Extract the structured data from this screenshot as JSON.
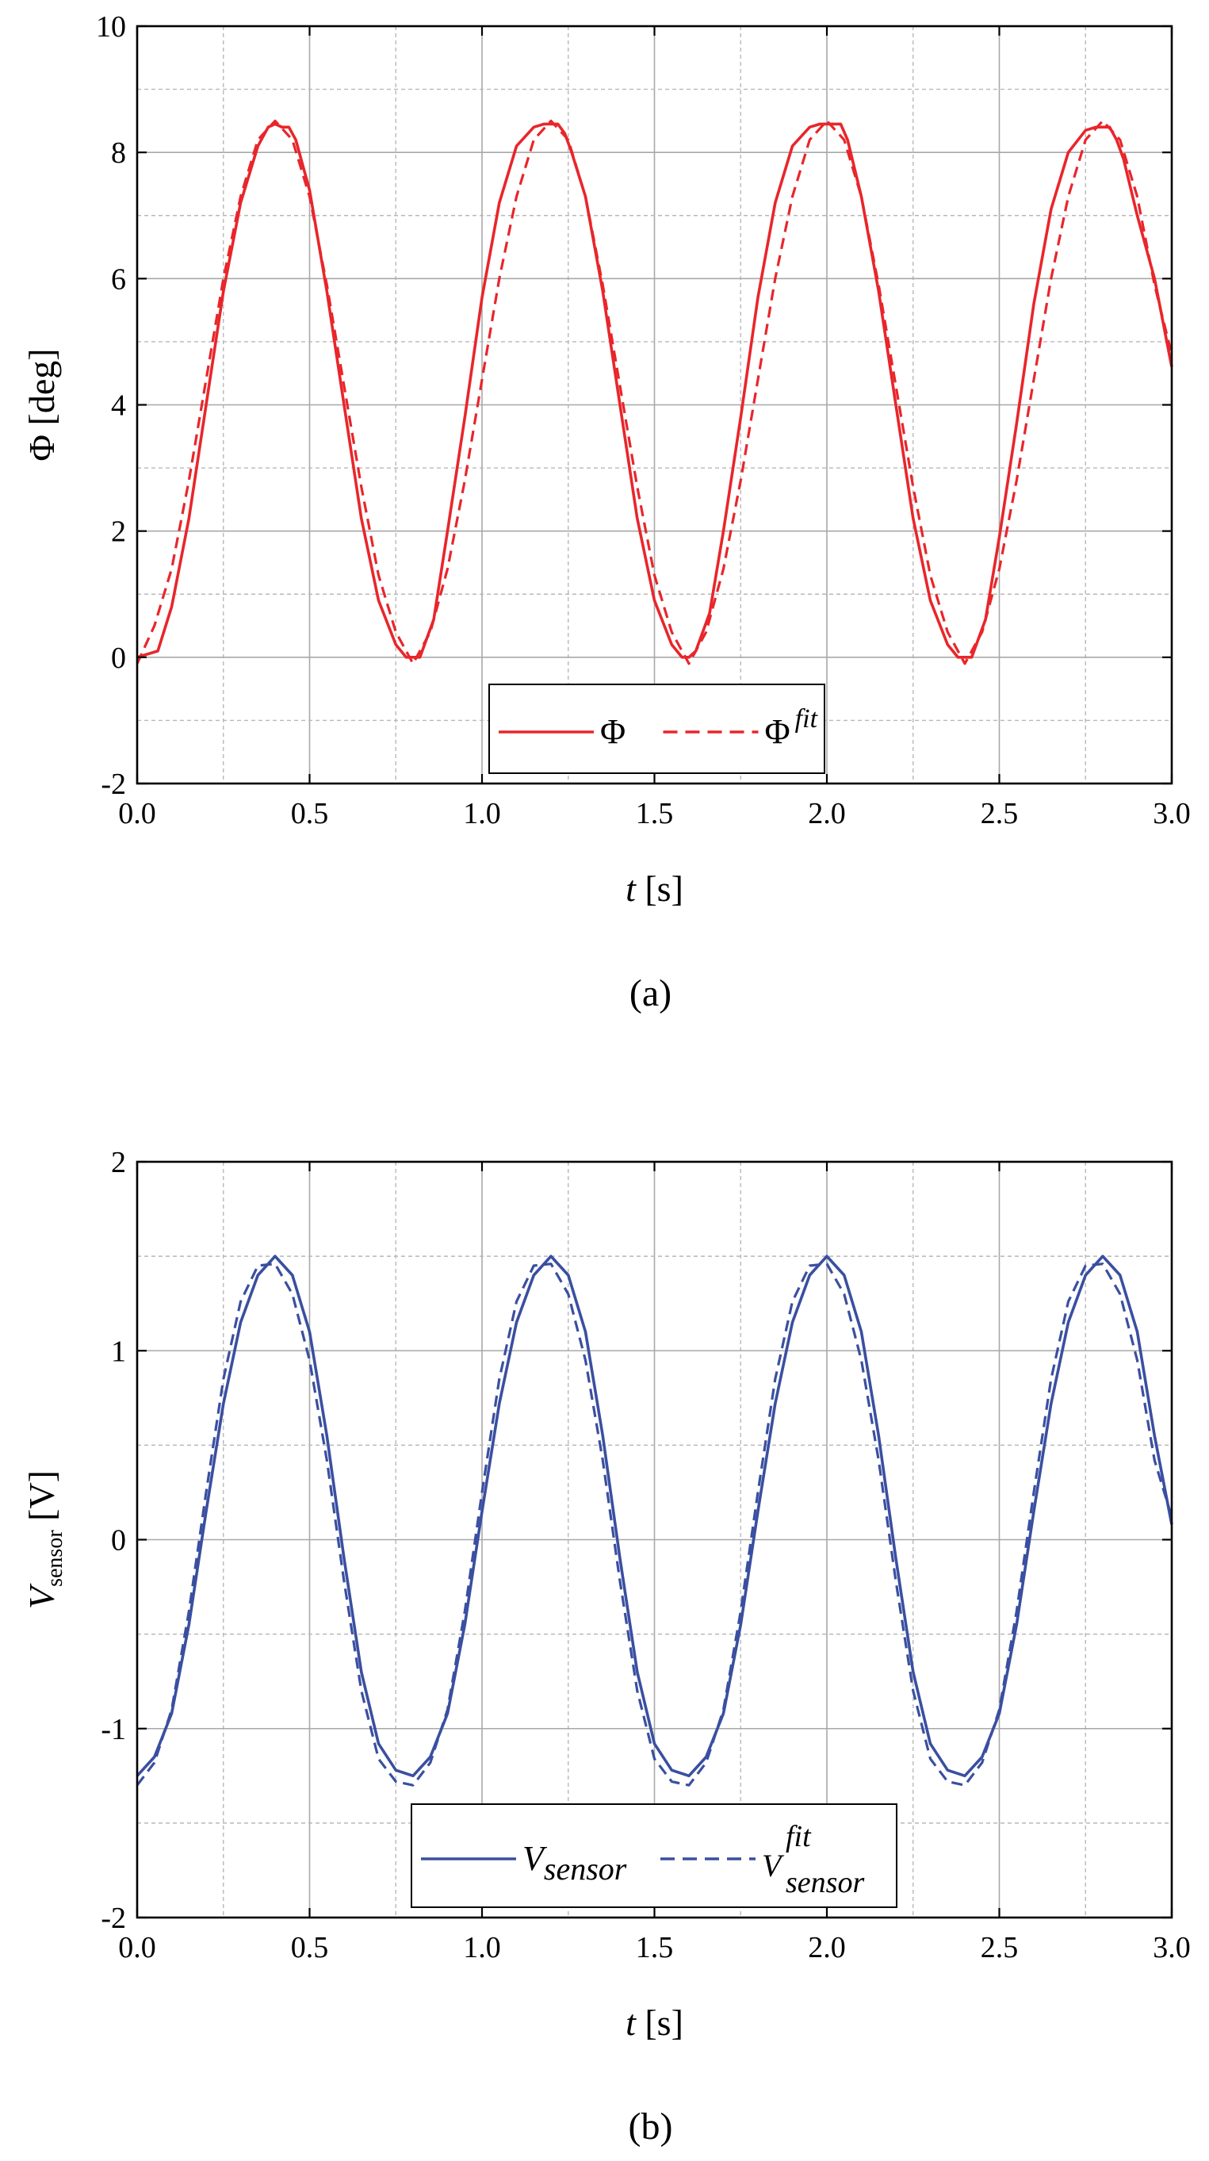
{
  "chart_data": [
    {
      "type": "line",
      "panel_label": "(a)",
      "title": "",
      "xlabel": {
        "italic": "t",
        "rest": " [s]"
      },
      "ylabel": "Φ [deg]",
      "xlim": [
        0,
        3
      ],
      "ylim": [
        -2,
        10
      ],
      "x_ticks": [
        "0.0",
        "0.5",
        "1.0",
        "1.5",
        "2.0",
        "2.5",
        "3.0"
      ],
      "y_ticks": [
        "-2",
        "0",
        "2",
        "4",
        "6",
        "8",
        "10"
      ],
      "grid": true,
      "legend_position": "bottom-center",
      "color": "#e8262b",
      "series": [
        {
          "name": "Φ",
          "superscript": "",
          "subscript": "",
          "dashed": false,
          "x": [
            0.0,
            0.06,
            0.1,
            0.15,
            0.2,
            0.25,
            0.3,
            0.35,
            0.38,
            0.4,
            0.42,
            0.44,
            0.46,
            0.5,
            0.55,
            0.6,
            0.65,
            0.7,
            0.75,
            0.78,
            0.8,
            0.82,
            0.86,
            0.9,
            0.95,
            1.0,
            1.05,
            1.1,
            1.15,
            1.18,
            1.2,
            1.22,
            1.24,
            1.26,
            1.3,
            1.35,
            1.4,
            1.45,
            1.5,
            1.55,
            1.58,
            1.6,
            1.62,
            1.66,
            1.7,
            1.75,
            1.8,
            1.85,
            1.9,
            1.95,
            1.98,
            2.0,
            2.02,
            2.04,
            2.06,
            2.1,
            2.15,
            2.2,
            2.25,
            2.3,
            2.35,
            2.38,
            2.4,
            2.42,
            2.46,
            2.5,
            2.55,
            2.6,
            2.65,
            2.7,
            2.75,
            2.78,
            2.8,
            2.82,
            2.84,
            2.86,
            2.9,
            2.95,
            3.0
          ],
          "y": [
            0.0,
            0.1,
            0.8,
            2.2,
            4.0,
            5.8,
            7.2,
            8.1,
            8.4,
            8.45,
            8.4,
            8.4,
            8.2,
            7.4,
            5.8,
            4.0,
            2.2,
            0.9,
            0.2,
            0.0,
            0.0,
            0.0,
            0.6,
            2.0,
            3.8,
            5.7,
            7.2,
            8.1,
            8.4,
            8.45,
            8.45,
            8.45,
            8.3,
            8.0,
            7.3,
            5.8,
            4.0,
            2.2,
            0.9,
            0.2,
            0.0,
            0.0,
            0.1,
            0.7,
            2.0,
            3.8,
            5.7,
            7.2,
            8.1,
            8.4,
            8.45,
            8.45,
            8.45,
            8.45,
            8.2,
            7.3,
            5.8,
            4.0,
            2.2,
            0.9,
            0.2,
            0.0,
            0.0,
            0.0,
            0.6,
            1.9,
            3.7,
            5.6,
            7.1,
            8.0,
            8.35,
            8.4,
            8.4,
            8.4,
            8.2,
            7.9,
            7.0,
            6.0,
            4.6
          ]
        },
        {
          "name": "Φ",
          "superscript": "fit",
          "subscript": "",
          "dashed": true,
          "x": [
            0.0,
            0.05,
            0.1,
            0.15,
            0.2,
            0.25,
            0.3,
            0.35,
            0.4,
            0.45,
            0.5,
            0.55,
            0.6,
            0.65,
            0.7,
            0.75,
            0.8,
            0.85,
            0.9,
            0.95,
            1.0,
            1.05,
            1.1,
            1.15,
            1.2,
            1.25,
            1.3,
            1.35,
            1.4,
            1.45,
            1.5,
            1.55,
            1.6,
            1.65,
            1.7,
            1.75,
            1.8,
            1.85,
            1.9,
            1.95,
            2.0,
            2.05,
            2.1,
            2.15,
            2.2,
            2.25,
            2.3,
            2.35,
            2.4,
            2.45,
            2.5,
            2.55,
            2.6,
            2.65,
            2.7,
            2.75,
            2.8,
            2.85,
            2.9,
            2.95,
            3.0
          ],
          "y": [
            -0.1,
            0.5,
            1.4,
            2.8,
            4.4,
            6.0,
            7.3,
            8.2,
            8.5,
            8.2,
            7.3,
            5.9,
            4.3,
            2.7,
            1.3,
            0.4,
            -0.1,
            0.4,
            1.4,
            2.8,
            4.4,
            6.0,
            7.3,
            8.2,
            8.5,
            8.2,
            7.3,
            5.9,
            4.3,
            2.7,
            1.3,
            0.4,
            -0.1,
            0.4,
            1.4,
            2.8,
            4.4,
            6.0,
            7.3,
            8.2,
            8.5,
            8.2,
            7.3,
            5.9,
            4.3,
            2.7,
            1.3,
            0.4,
            -0.1,
            0.4,
            1.4,
            2.8,
            4.4,
            6.0,
            7.3,
            8.2,
            8.5,
            8.2,
            7.3,
            5.9,
            4.8
          ]
        }
      ]
    },
    {
      "type": "line",
      "panel_label": "(b)",
      "title": "",
      "xlabel": {
        "italic": "t",
        "rest": " [s]"
      },
      "ylabel": {
        "italic": "V",
        "sub": "sensor",
        "rest": " [V]"
      },
      "xlim": [
        0,
        3
      ],
      "ylim": [
        -2,
        2
      ],
      "x_ticks": [
        "0.0",
        "0.5",
        "1.0",
        "1.5",
        "2.0",
        "2.5",
        "3.0"
      ],
      "y_ticks": [
        "-2",
        "-1",
        "0",
        "1",
        "2"
      ],
      "grid": true,
      "legend_position": "bottom-center",
      "color": "#3a4fa0",
      "series": [
        {
          "name": "V",
          "superscript": "",
          "subscript": "sensor",
          "dashed": false,
          "x": [
            0.0,
            0.05,
            0.1,
            0.15,
            0.2,
            0.25,
            0.3,
            0.35,
            0.4,
            0.45,
            0.5,
            0.55,
            0.6,
            0.65,
            0.7,
            0.75,
            0.8,
            0.85,
            0.9,
            0.95,
            1.0,
            1.05,
            1.1,
            1.15,
            1.2,
            1.25,
            1.3,
            1.35,
            1.4,
            1.45,
            1.5,
            1.55,
            1.6,
            1.65,
            1.7,
            1.75,
            1.8,
            1.85,
            1.9,
            1.95,
            2.0,
            2.05,
            2.1,
            2.15,
            2.2,
            2.25,
            2.3,
            2.35,
            2.4,
            2.45,
            2.5,
            2.55,
            2.6,
            2.65,
            2.7,
            2.75,
            2.8,
            2.85,
            2.9,
            2.95,
            3.0
          ],
          "y": [
            -1.25,
            -1.15,
            -0.92,
            -0.45,
            0.15,
            0.72,
            1.15,
            1.4,
            1.5,
            1.4,
            1.1,
            0.55,
            -0.1,
            -0.7,
            -1.08,
            -1.22,
            -1.25,
            -1.15,
            -0.92,
            -0.45,
            0.15,
            0.72,
            1.15,
            1.4,
            1.5,
            1.4,
            1.1,
            0.55,
            -0.1,
            -0.7,
            -1.08,
            -1.22,
            -1.25,
            -1.15,
            -0.92,
            -0.45,
            0.15,
            0.72,
            1.15,
            1.4,
            1.5,
            1.4,
            1.1,
            0.55,
            -0.1,
            -0.7,
            -1.08,
            -1.22,
            -1.25,
            -1.15,
            -0.92,
            -0.45,
            0.15,
            0.72,
            1.15,
            1.4,
            1.5,
            1.4,
            1.1,
            0.55,
            0.08
          ]
        },
        {
          "name": "V",
          "superscript": "fit",
          "subscript": "sensor",
          "dashed": true,
          "x": [
            0.0,
            0.05,
            0.1,
            0.15,
            0.2,
            0.25,
            0.3,
            0.35,
            0.4,
            0.45,
            0.5,
            0.55,
            0.6,
            0.65,
            0.7,
            0.75,
            0.8,
            0.85,
            0.9,
            0.95,
            1.0,
            1.05,
            1.1,
            1.15,
            1.2,
            1.25,
            1.3,
            1.35,
            1.4,
            1.45,
            1.5,
            1.55,
            1.6,
            1.65,
            1.7,
            1.75,
            1.8,
            1.85,
            1.9,
            1.95,
            2.0,
            2.05,
            2.1,
            2.15,
            2.2,
            2.25,
            2.3,
            2.35,
            2.4,
            2.45,
            2.5,
            2.55,
            2.6,
            2.65,
            2.7,
            2.75,
            2.8,
            2.85,
            2.9,
            2.95,
            3.0
          ],
          "y": [
            -1.3,
            -1.18,
            -0.9,
            -0.38,
            0.25,
            0.85,
            1.26,
            1.45,
            1.46,
            1.3,
            0.95,
            0.42,
            -0.22,
            -0.8,
            -1.16,
            -1.28,
            -1.3,
            -1.18,
            -0.9,
            -0.38,
            0.25,
            0.85,
            1.26,
            1.45,
            1.46,
            1.3,
            0.95,
            0.42,
            -0.22,
            -0.8,
            -1.16,
            -1.28,
            -1.3,
            -1.18,
            -0.9,
            -0.38,
            0.25,
            0.85,
            1.26,
            1.45,
            1.46,
            1.3,
            0.95,
            0.42,
            -0.22,
            -0.8,
            -1.16,
            -1.28,
            -1.3,
            -1.18,
            -0.9,
            -0.38,
            0.25,
            0.85,
            1.26,
            1.45,
            1.46,
            1.3,
            0.95,
            0.42,
            0.12
          ]
        }
      ]
    }
  ]
}
